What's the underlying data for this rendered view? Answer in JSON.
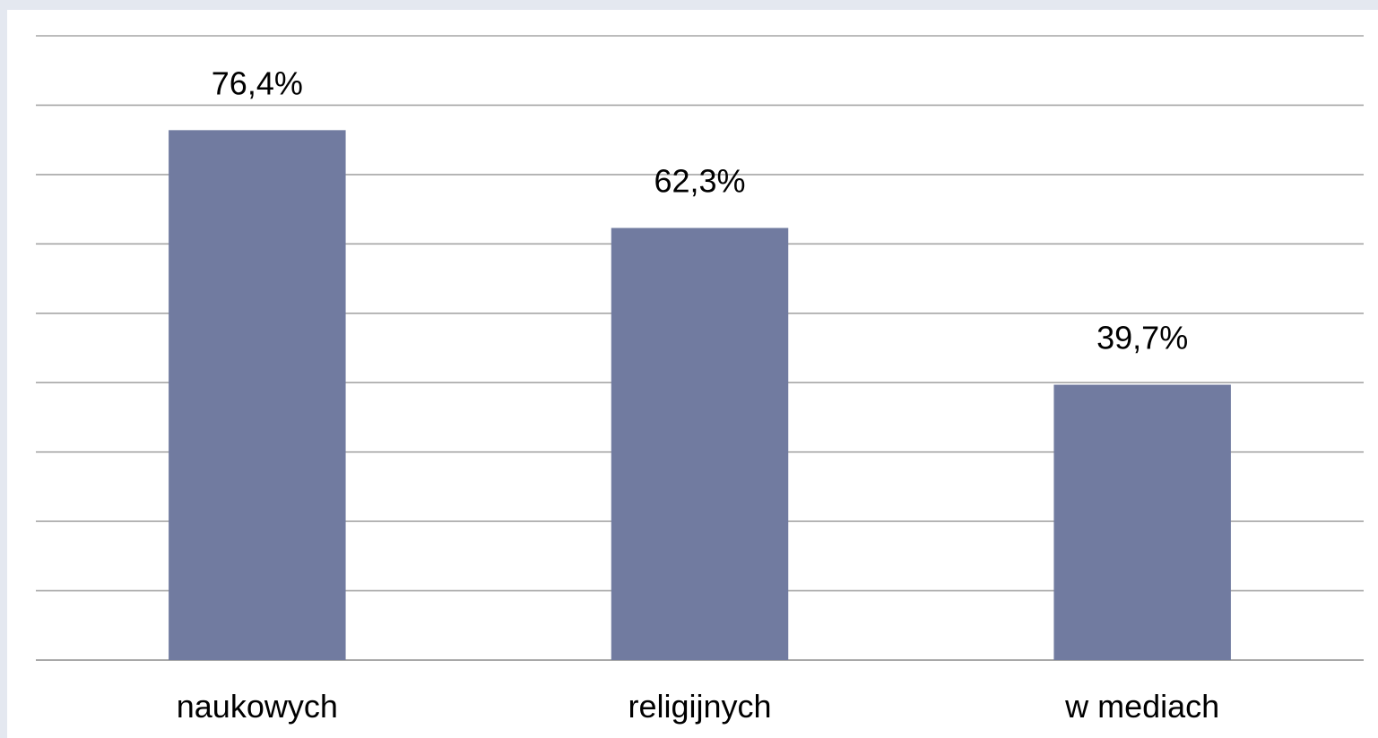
{
  "chart_data": {
    "type": "bar",
    "categories": [
      "naukowych",
      "religijnych",
      "w mediach"
    ],
    "values": [
      76.4,
      62.3,
      39.7
    ],
    "value_labels": [
      "76,4%",
      "62,3%",
      "39,7%"
    ],
    "ylim": [
      0,
      90
    ],
    "grid": true,
    "bar_color": "#717ba0",
    "grid_color": "#a6a6a6",
    "background_color": "#ffffff",
    "page_background": "#e4e8f0"
  }
}
